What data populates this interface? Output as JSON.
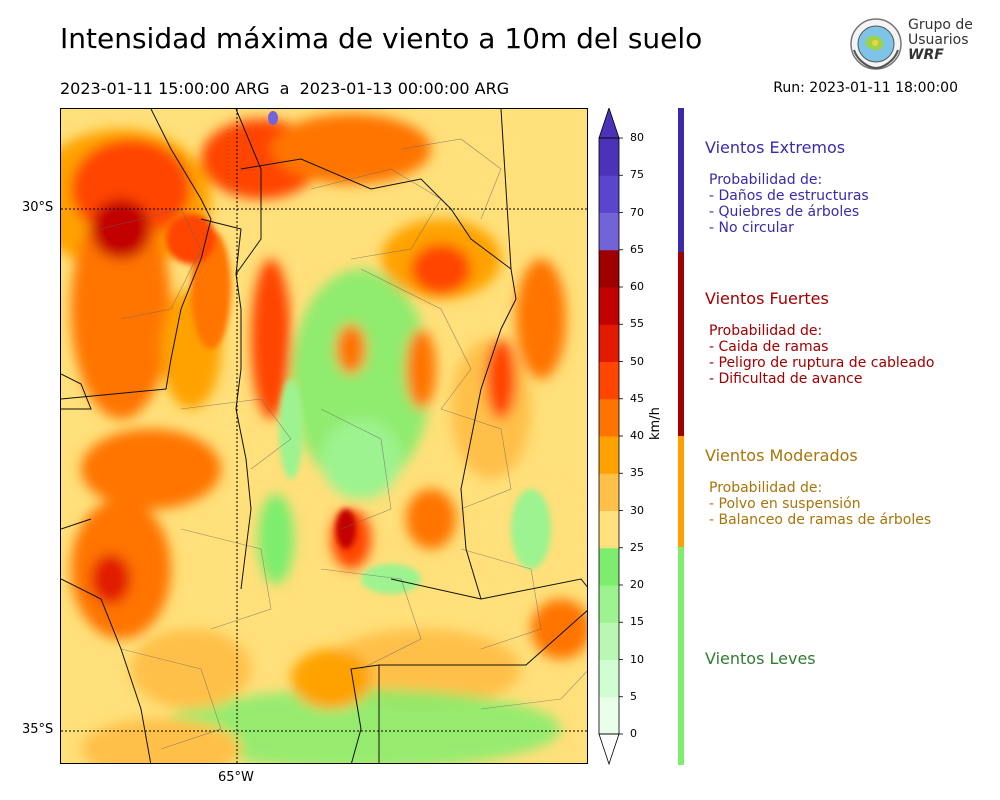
{
  "title": "Intensidad máxima de viento a 10m del suelo",
  "period": "2023-01-11 15:00:00 ARG  a  2023-01-13 00:00:00 ARG",
  "run": "Run: 2023-01-11 18:00:00",
  "logo": {
    "line1": "Grupo de",
    "line2": "Usuarios",
    "line3": "WRF"
  },
  "map": {
    "lat_labels": [
      "30°S",
      "35°S"
    ],
    "lon_labels": [
      "65°W"
    ]
  },
  "colorbar": {
    "units": "km/h",
    "ticks": [
      "0",
      "5",
      "10",
      "15",
      "20",
      "25",
      "30",
      "35",
      "40",
      "45",
      "50",
      "55",
      "60",
      "65",
      "70",
      "75",
      "80"
    ],
    "colors": [
      "#eaffea",
      "#d2fcd2",
      "#b8f8b3",
      "#9cf38f",
      "#7ced6d",
      "#ffe07a",
      "#ffc04a",
      "#ffa200",
      "#ff7400",
      "#ff4500",
      "#e21a00",
      "#c20000",
      "#9e0000",
      "#7263d8",
      "#5a46cc",
      "#4b32b8"
    ]
  },
  "categories": [
    {
      "title": "Vientos Extremos",
      "color": "#3a2aaa",
      "lines": [
        "Probabilidad de:",
        "- Daños de estructuras",
        "- Quiebres de árboles",
        "- No circular"
      ]
    },
    {
      "title": "Vientos Fuertes",
      "color": "#a00000",
      "lines": [
        "Probabilidad de:",
        "- Caida de ramas",
        "- Peligro de ruptura de cableado",
        "- Dificultad de avance"
      ]
    },
    {
      "title": "Vientos Moderados",
      "color": "#a8740a",
      "lines": [
        "Probabilidad de:",
        "- Polvo en suspensión",
        "- Balanceo de ramas de árboles"
      ]
    },
    {
      "title": "Vientos Leves",
      "color": "#2e7d32",
      "lines": []
    }
  ]
}
